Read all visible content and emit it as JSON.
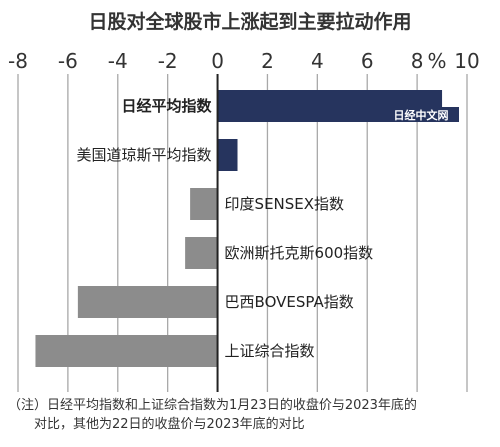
{
  "chart_data": {
    "type": "bar",
    "orientation": "horizontal",
    "title": "日股对全球股市上涨起到主要拉动作用",
    "unit": "%",
    "xlim": [
      -8,
      10
    ],
    "ticks": [
      -8,
      -6,
      -4,
      -2,
      0,
      2,
      4,
      6,
      8,
      10
    ],
    "grid": true,
    "categories": [
      "日经平均指数",
      "美国道琼斯平均指数",
      "印度SENSEX指数",
      "欧洲斯托克斯600指数",
      "巴西BOVESPA指数",
      "上证综合指数"
    ],
    "values": [
      9.0,
      0.8,
      -1.1,
      -1.3,
      -5.6,
      -7.3
    ],
    "bar_colors": [
      "#26345e",
      "#26345e",
      "#8c8c8c",
      "#8c8c8c",
      "#8c8c8c",
      "#8c8c8c"
    ],
    "bold_categories": [
      true,
      false,
      false,
      false,
      false,
      false
    ],
    "footnote_lines": [
      "（注）日经平均指数和上证综合指数为1月23日的收盘价与2023年底的",
      "对比，其他为22日的收盘价与2023年底的对比"
    ]
  },
  "watermark": "日经中文网",
  "colors": {
    "grid": "#a8a8a8",
    "axis": "#222222",
    "watermark_bg": "#26345e"
  }
}
